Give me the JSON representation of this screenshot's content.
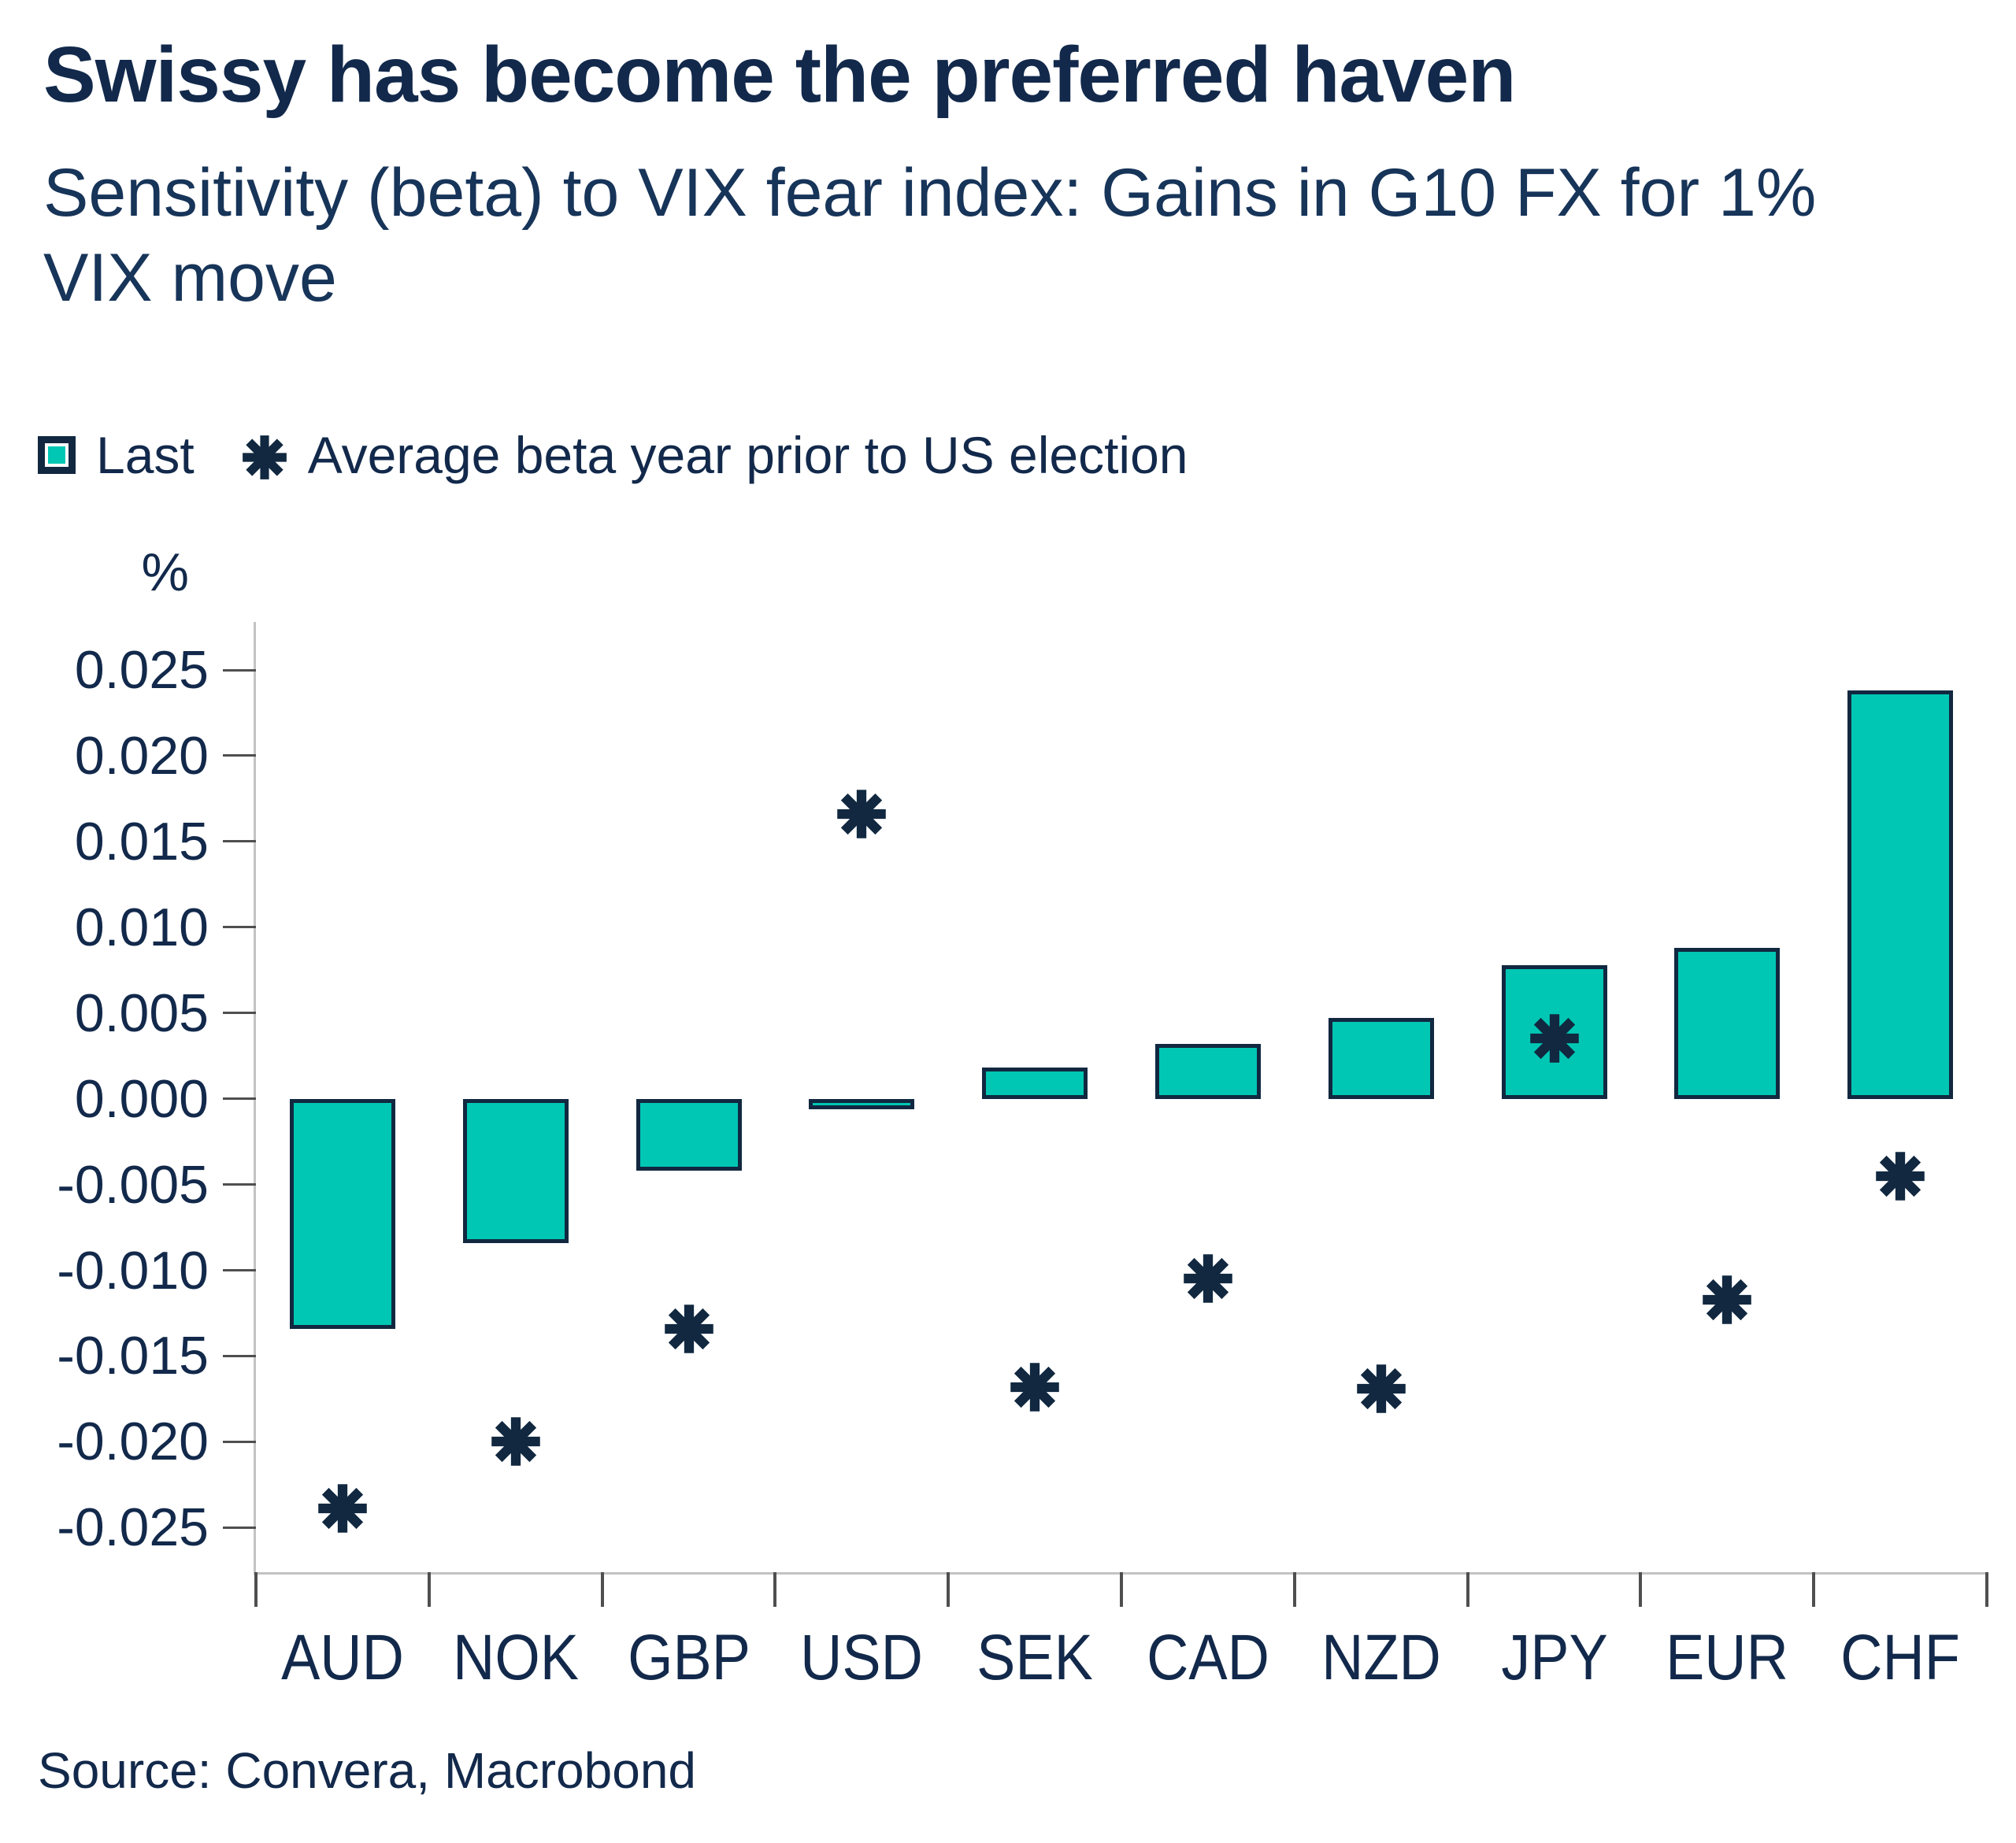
{
  "header": {
    "title": "Swissy has become the preferred haven",
    "subtitle": "Sensitivity (beta) to VIX fear index: Gains in G10 FX for 1%\nVIX move"
  },
  "legend": {
    "last_label": "Last",
    "avg_label": "Average beta year prior to US election"
  },
  "axis": {
    "y_unit_label": "%"
  },
  "chart_data": {
    "type": "bar",
    "title": "Swissy has become the preferred haven",
    "subtitle": "Sensitivity (beta) to VIX fear index: Gains in G10 FX for 1% VIX move",
    "ylabel": "%",
    "xlabel": "",
    "categories": [
      "AUD",
      "NOK",
      "GBP",
      "USD",
      "SEK",
      "CAD",
      "NZD",
      "JPY",
      "EUR",
      "CHF"
    ],
    "series": [
      {
        "name": "Last",
        "type": "bar",
        "color": "#00C7B4",
        "border_color": "#112840",
        "values": [
          -0.0134,
          -0.0084,
          -0.0042,
          -0.0006,
          0.0018,
          0.0032,
          0.0047,
          0.0078,
          0.0088,
          0.0238
        ]
      },
      {
        "name": "Average beta year prior to US election",
        "type": "scatter",
        "marker": "asterisk",
        "color": "#112840",
        "values": [
          -0.0239,
          -0.02,
          -0.0134,
          0.0166,
          -0.0168,
          -0.0105,
          -0.0169,
          0.0035,
          -0.0117,
          -0.0045
        ]
      }
    ],
    "ylim": [
      -0.0276,
      0.0278
    ],
    "yticks": [
      0.025,
      0.02,
      0.015,
      0.01,
      0.005,
      0.0,
      -0.005,
      -0.01,
      -0.015,
      -0.02,
      -0.025
    ],
    "grid": false,
    "legend_position": "top-left"
  },
  "footer": {
    "source": "Source: Convera, Macrobond"
  }
}
